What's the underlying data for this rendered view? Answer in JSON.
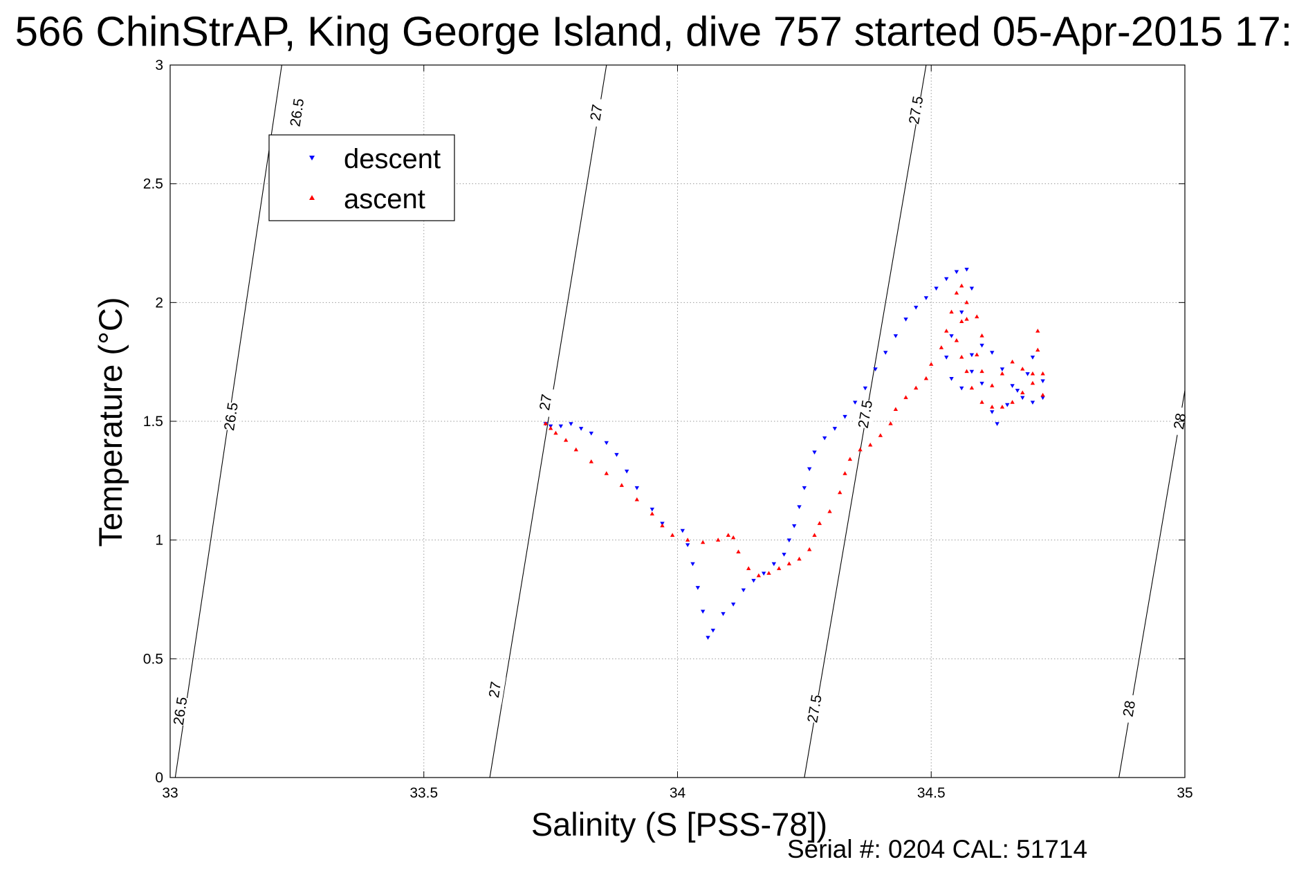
{
  "chart_data": {
    "type": "scatter",
    "title": "566 ChinStrAP, King George Island, dive 757 started 05-Apr-2015 17:",
    "xlabel": "Salinity (S [PSS-78])",
    "ylabel": "Temperature (°C)",
    "xlim": [
      33,
      35
    ],
    "ylim": [
      0,
      3
    ],
    "xticks": [
      "33",
      "33.5",
      "34",
      "34.5",
      "35"
    ],
    "yticks": [
      "0",
      "0.5",
      "1",
      "1.5",
      "2",
      "2.5",
      "3"
    ],
    "grid": true,
    "legend_position": "top-left",
    "footer": "Serial #: 0204  CAL: 51714",
    "contours": [
      {
        "label": "26.5",
        "line": [
          [
            33.01,
            0
          ],
          [
            33.22,
            3
          ]
        ],
        "label_at": [
          [
            33.02,
            0.28
          ],
          [
            33.12,
            1.52
          ],
          [
            33.25,
            2.8
          ]
        ]
      },
      {
        "label": "27",
        "line": [
          [
            33.63,
            0
          ],
          [
            33.86,
            3
          ]
        ],
        "label_at": [
          [
            33.64,
            0.37
          ],
          [
            33.74,
            1.58
          ],
          [
            33.84,
            2.8
          ]
        ]
      },
      {
        "label": "27.5",
        "line": [
          [
            34.25,
            0
          ],
          [
            34.49,
            3
          ]
        ],
        "label_at": [
          [
            34.27,
            0.29
          ],
          [
            34.37,
            1.53
          ],
          [
            34.47,
            2.81
          ]
        ]
      },
      {
        "label": "28",
        "line": [
          [
            34.87,
            0
          ],
          [
            35.0,
            1.63
          ]
        ],
        "label_at": [
          [
            34.89,
            0.29
          ],
          [
            34.99,
            1.5
          ]
        ]
      }
    ],
    "series": [
      {
        "name": "descent",
        "color": "#0000ff",
        "marker": "triangle-down",
        "points": [
          [
            33.74,
            1.49
          ],
          [
            33.75,
            1.48
          ],
          [
            33.77,
            1.48
          ],
          [
            33.79,
            1.49
          ],
          [
            33.81,
            1.47
          ],
          [
            33.83,
            1.45
          ],
          [
            33.86,
            1.41
          ],
          [
            33.88,
            1.36
          ],
          [
            33.9,
            1.29
          ],
          [
            33.92,
            1.22
          ],
          [
            33.95,
            1.13
          ],
          [
            33.97,
            1.07
          ],
          [
            34.01,
            1.04
          ],
          [
            34.02,
            0.98
          ],
          [
            34.03,
            0.9
          ],
          [
            34.04,
            0.8
          ],
          [
            34.05,
            0.7
          ],
          [
            34.06,
            0.59
          ],
          [
            34.07,
            0.62
          ],
          [
            34.09,
            0.69
          ],
          [
            34.11,
            0.73
          ],
          [
            34.13,
            0.79
          ],
          [
            34.15,
            0.83
          ],
          [
            34.17,
            0.86
          ],
          [
            34.19,
            0.9
          ],
          [
            34.21,
            0.94
          ],
          [
            34.22,
            1.0
          ],
          [
            34.23,
            1.06
          ],
          [
            34.24,
            1.14
          ],
          [
            34.25,
            1.22
          ],
          [
            34.26,
            1.3
          ],
          [
            34.27,
            1.37
          ],
          [
            34.29,
            1.43
          ],
          [
            34.31,
            1.47
          ],
          [
            34.33,
            1.52
          ],
          [
            34.35,
            1.58
          ],
          [
            34.37,
            1.64
          ],
          [
            34.39,
            1.72
          ],
          [
            34.41,
            1.79
          ],
          [
            34.43,
            1.86
          ],
          [
            34.45,
            1.93
          ],
          [
            34.47,
            1.98
          ],
          [
            34.49,
            2.02
          ],
          [
            34.51,
            2.06
          ],
          [
            34.53,
            2.1
          ],
          [
            34.55,
            2.13
          ],
          [
            34.57,
            2.14
          ],
          [
            34.58,
            2.06
          ],
          [
            34.56,
            1.96
          ],
          [
            34.54,
            1.86
          ],
          [
            34.53,
            1.77
          ],
          [
            34.54,
            1.68
          ],
          [
            34.56,
            1.64
          ],
          [
            34.58,
            1.71
          ],
          [
            34.6,
            1.66
          ],
          [
            34.62,
            1.54
          ],
          [
            34.63,
            1.49
          ],
          [
            34.65,
            1.57
          ],
          [
            34.67,
            1.63
          ],
          [
            34.69,
            1.7
          ],
          [
            34.7,
            1.77
          ],
          [
            34.72,
            1.67
          ],
          [
            34.72,
            1.6
          ],
          [
            34.7,
            1.58
          ],
          [
            34.68,
            1.6
          ],
          [
            34.66,
            1.65
          ],
          [
            34.64,
            1.72
          ],
          [
            34.62,
            1.79
          ],
          [
            34.6,
            1.82
          ],
          [
            34.58,
            1.78
          ]
        ]
      },
      {
        "name": "ascent",
        "color": "#ff0000",
        "marker": "triangle-up",
        "points": [
          [
            33.74,
            1.49
          ],
          [
            33.75,
            1.47
          ],
          [
            33.76,
            1.45
          ],
          [
            33.78,
            1.42
          ],
          [
            33.8,
            1.38
          ],
          [
            33.83,
            1.33
          ],
          [
            33.86,
            1.28
          ],
          [
            33.89,
            1.23
          ],
          [
            33.92,
            1.17
          ],
          [
            33.95,
            1.11
          ],
          [
            33.97,
            1.06
          ],
          [
            33.99,
            1.02
          ],
          [
            34.02,
            1.0
          ],
          [
            34.05,
            0.99
          ],
          [
            34.08,
            1.0
          ],
          [
            34.1,
            1.02
          ],
          [
            34.11,
            1.01
          ],
          [
            34.12,
            0.95
          ],
          [
            34.14,
            0.88
          ],
          [
            34.16,
            0.85
          ],
          [
            34.18,
            0.86
          ],
          [
            34.2,
            0.88
          ],
          [
            34.22,
            0.9
          ],
          [
            34.24,
            0.92
          ],
          [
            34.26,
            0.96
          ],
          [
            34.27,
            1.02
          ],
          [
            34.28,
            1.07
          ],
          [
            34.3,
            1.12
          ],
          [
            34.32,
            1.2
          ],
          [
            34.33,
            1.28
          ],
          [
            34.34,
            1.34
          ],
          [
            34.36,
            1.38
          ],
          [
            34.38,
            1.4
          ],
          [
            34.4,
            1.44
          ],
          [
            34.42,
            1.49
          ],
          [
            34.43,
            1.55
          ],
          [
            34.45,
            1.6
          ],
          [
            34.47,
            1.64
          ],
          [
            34.49,
            1.68
          ],
          [
            34.5,
            1.74
          ],
          [
            34.52,
            1.81
          ],
          [
            34.53,
            1.88
          ],
          [
            34.54,
            1.96
          ],
          [
            34.55,
            2.04
          ],
          [
            34.56,
            2.07
          ],
          [
            34.57,
            2.0
          ],
          [
            34.56,
            1.92
          ],
          [
            34.55,
            1.84
          ],
          [
            34.56,
            1.77
          ],
          [
            34.57,
            1.71
          ],
          [
            34.58,
            1.64
          ],
          [
            34.6,
            1.58
          ],
          [
            34.62,
            1.56
          ],
          [
            34.64,
            1.56
          ],
          [
            34.66,
            1.58
          ],
          [
            34.68,
            1.62
          ],
          [
            34.7,
            1.7
          ],
          [
            34.71,
            1.8
          ],
          [
            34.71,
            1.88
          ],
          [
            34.72,
            1.7
          ],
          [
            34.72,
            1.61
          ],
          [
            34.7,
            1.66
          ],
          [
            34.68,
            1.72
          ],
          [
            34.66,
            1.75
          ],
          [
            34.64,
            1.7
          ],
          [
            34.62,
            1.65
          ],
          [
            34.6,
            1.71
          ],
          [
            34.59,
            1.78
          ],
          [
            34.6,
            1.86
          ],
          [
            34.59,
            1.94
          ],
          [
            34.57,
            1.93
          ]
        ]
      }
    ]
  }
}
